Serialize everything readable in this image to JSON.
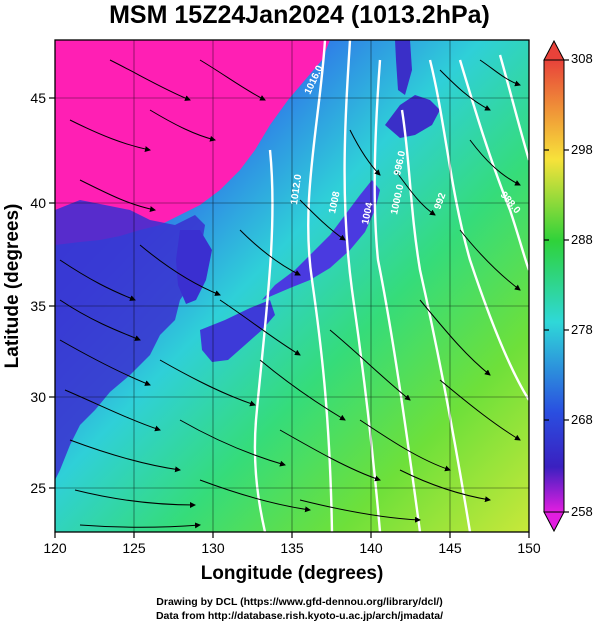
{
  "title": "MSM 15Z24Jan2024 (1013.2hPa)",
  "x_axis": {
    "label": "Longitude (degrees)",
    "ticks": [
      "120",
      "125",
      "130",
      "135",
      "140",
      "145",
      "150"
    ]
  },
  "y_axis": {
    "label": "Latitude  (degrees)",
    "ticks": [
      "25",
      "30",
      "35",
      "40",
      "45"
    ]
  },
  "colorbar": {
    "ticks": [
      "308",
      "298",
      "288",
      "278",
      "268",
      "258"
    ],
    "colors": [
      "#e8423a",
      "#f7e23a",
      "#2fd23a",
      "#2fd8d8",
      "#2a4ee0",
      "#e21ee0"
    ]
  },
  "isobar_labels": [
    "1012.0",
    "1008",
    "1004",
    "1000.0",
    "996.0",
    "992",
    "988.0",
    "1016.0"
  ],
  "credits": {
    "line1": "Drawing by DCL (https://www.gfd-dennou.org/library/dcl/)",
    "line2": "Data from http://database.rish.kyoto-u.ac.jp/arch/jmadata/"
  },
  "colors": {
    "cold_air": "#ff1fb4",
    "land": "#3a2fd0",
    "isobar": "#ffffff",
    "wind_vector": "#000000"
  }
}
